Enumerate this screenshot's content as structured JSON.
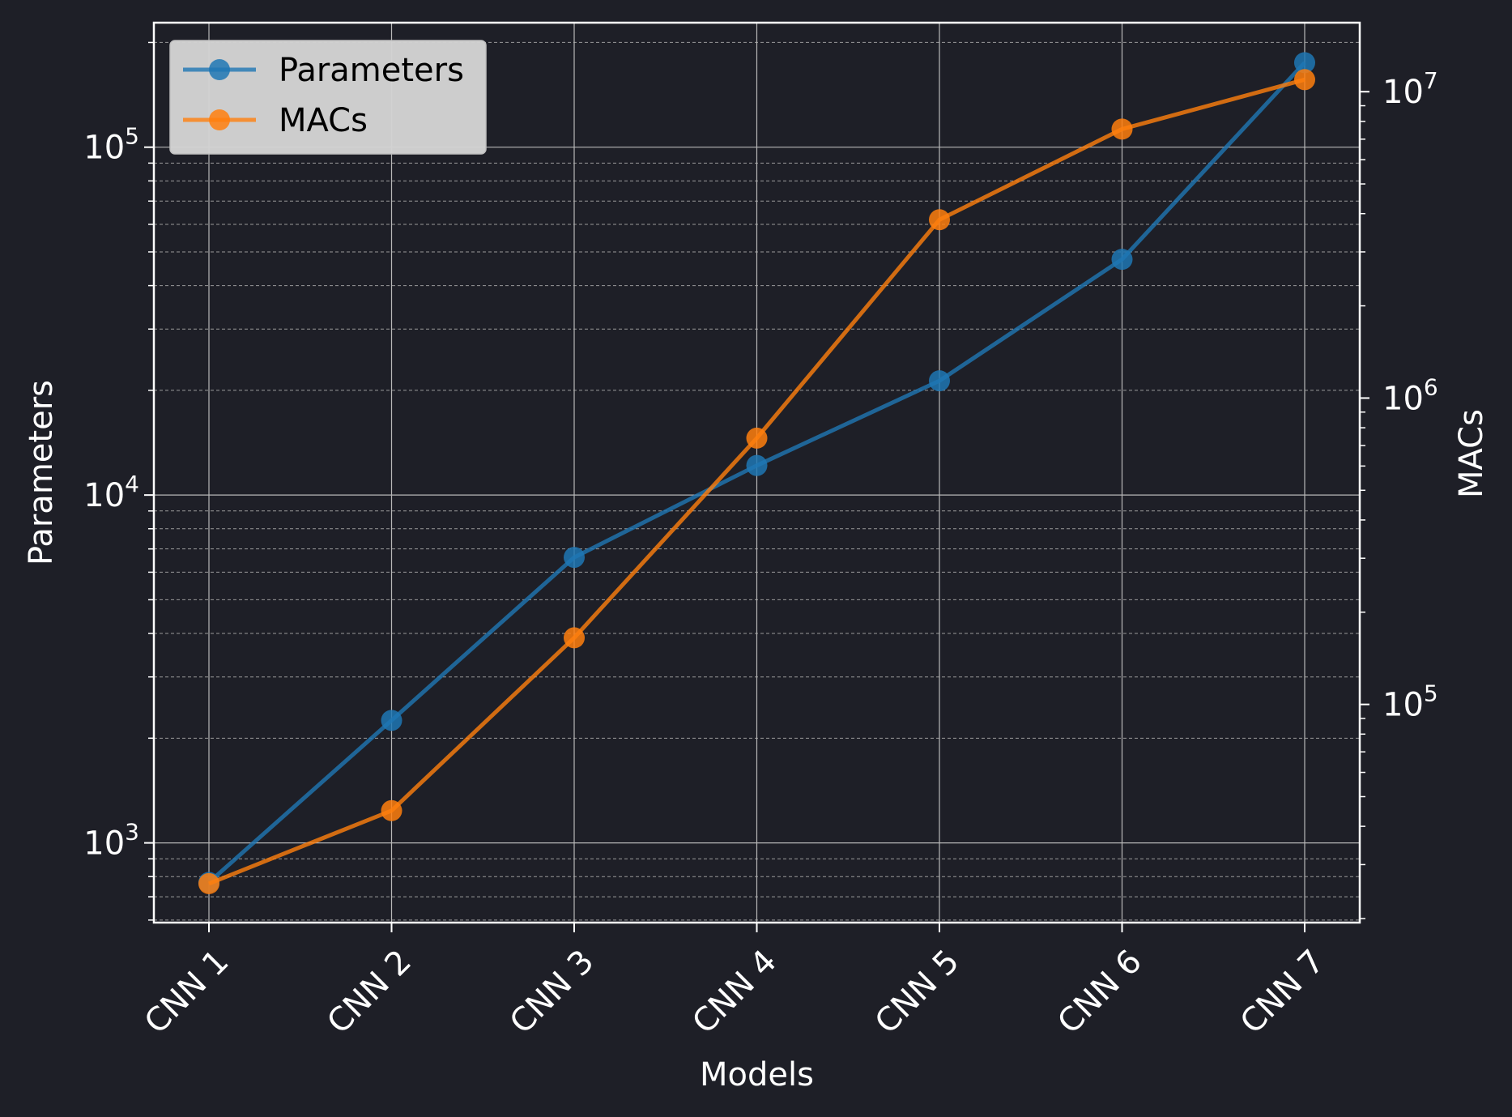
{
  "chart_data": {
    "type": "line",
    "categories": [
      "CNN 1",
      "CNN 2",
      "CNN 3",
      "CNN 4",
      "CNN 5",
      "CNN 6",
      "CNN 7"
    ],
    "series": [
      {
        "name": "Parameters",
        "axis": "left",
        "color": "#1f77b4",
        "values": [
          770,
          2250,
          6620,
          12160,
          21300,
          47600,
          175000
        ]
      },
      {
        "name": "MACs",
        "axis": "right",
        "color": "#ff7f0e",
        "values": [
          26000,
          45000,
          165000,
          740000,
          3820000,
          7550000,
          10950000
        ]
      }
    ],
    "xlabel": "Models",
    "ylabel": "Parameters",
    "y2label": "MACs",
    "yscale": "log",
    "y2scale": "log",
    "ylim": [
      590,
      228000
    ],
    "y2lim": [
      19400,
      16800000
    ],
    "yticks": [
      {
        "value": 1000,
        "base": "10",
        "exp": "3"
      },
      {
        "value": 10000,
        "base": "10",
        "exp": "4"
      },
      {
        "value": 100000,
        "base": "10",
        "exp": "5"
      }
    ],
    "y2ticks": [
      {
        "value": 100000,
        "base": "10",
        "exp": "5"
      },
      {
        "value": 1000000,
        "base": "10",
        "exp": "6"
      },
      {
        "value": 10000000,
        "base": "10",
        "exp": "7"
      }
    ],
    "grid": true,
    "legend_position": "top-left",
    "colors": {
      "background": "#1e1f27",
      "axes": "#ffffff",
      "grid_major": "#b8b8b8",
      "grid_minor": "#9a9a9a",
      "legend_bg": "#d3d3d3"
    }
  }
}
